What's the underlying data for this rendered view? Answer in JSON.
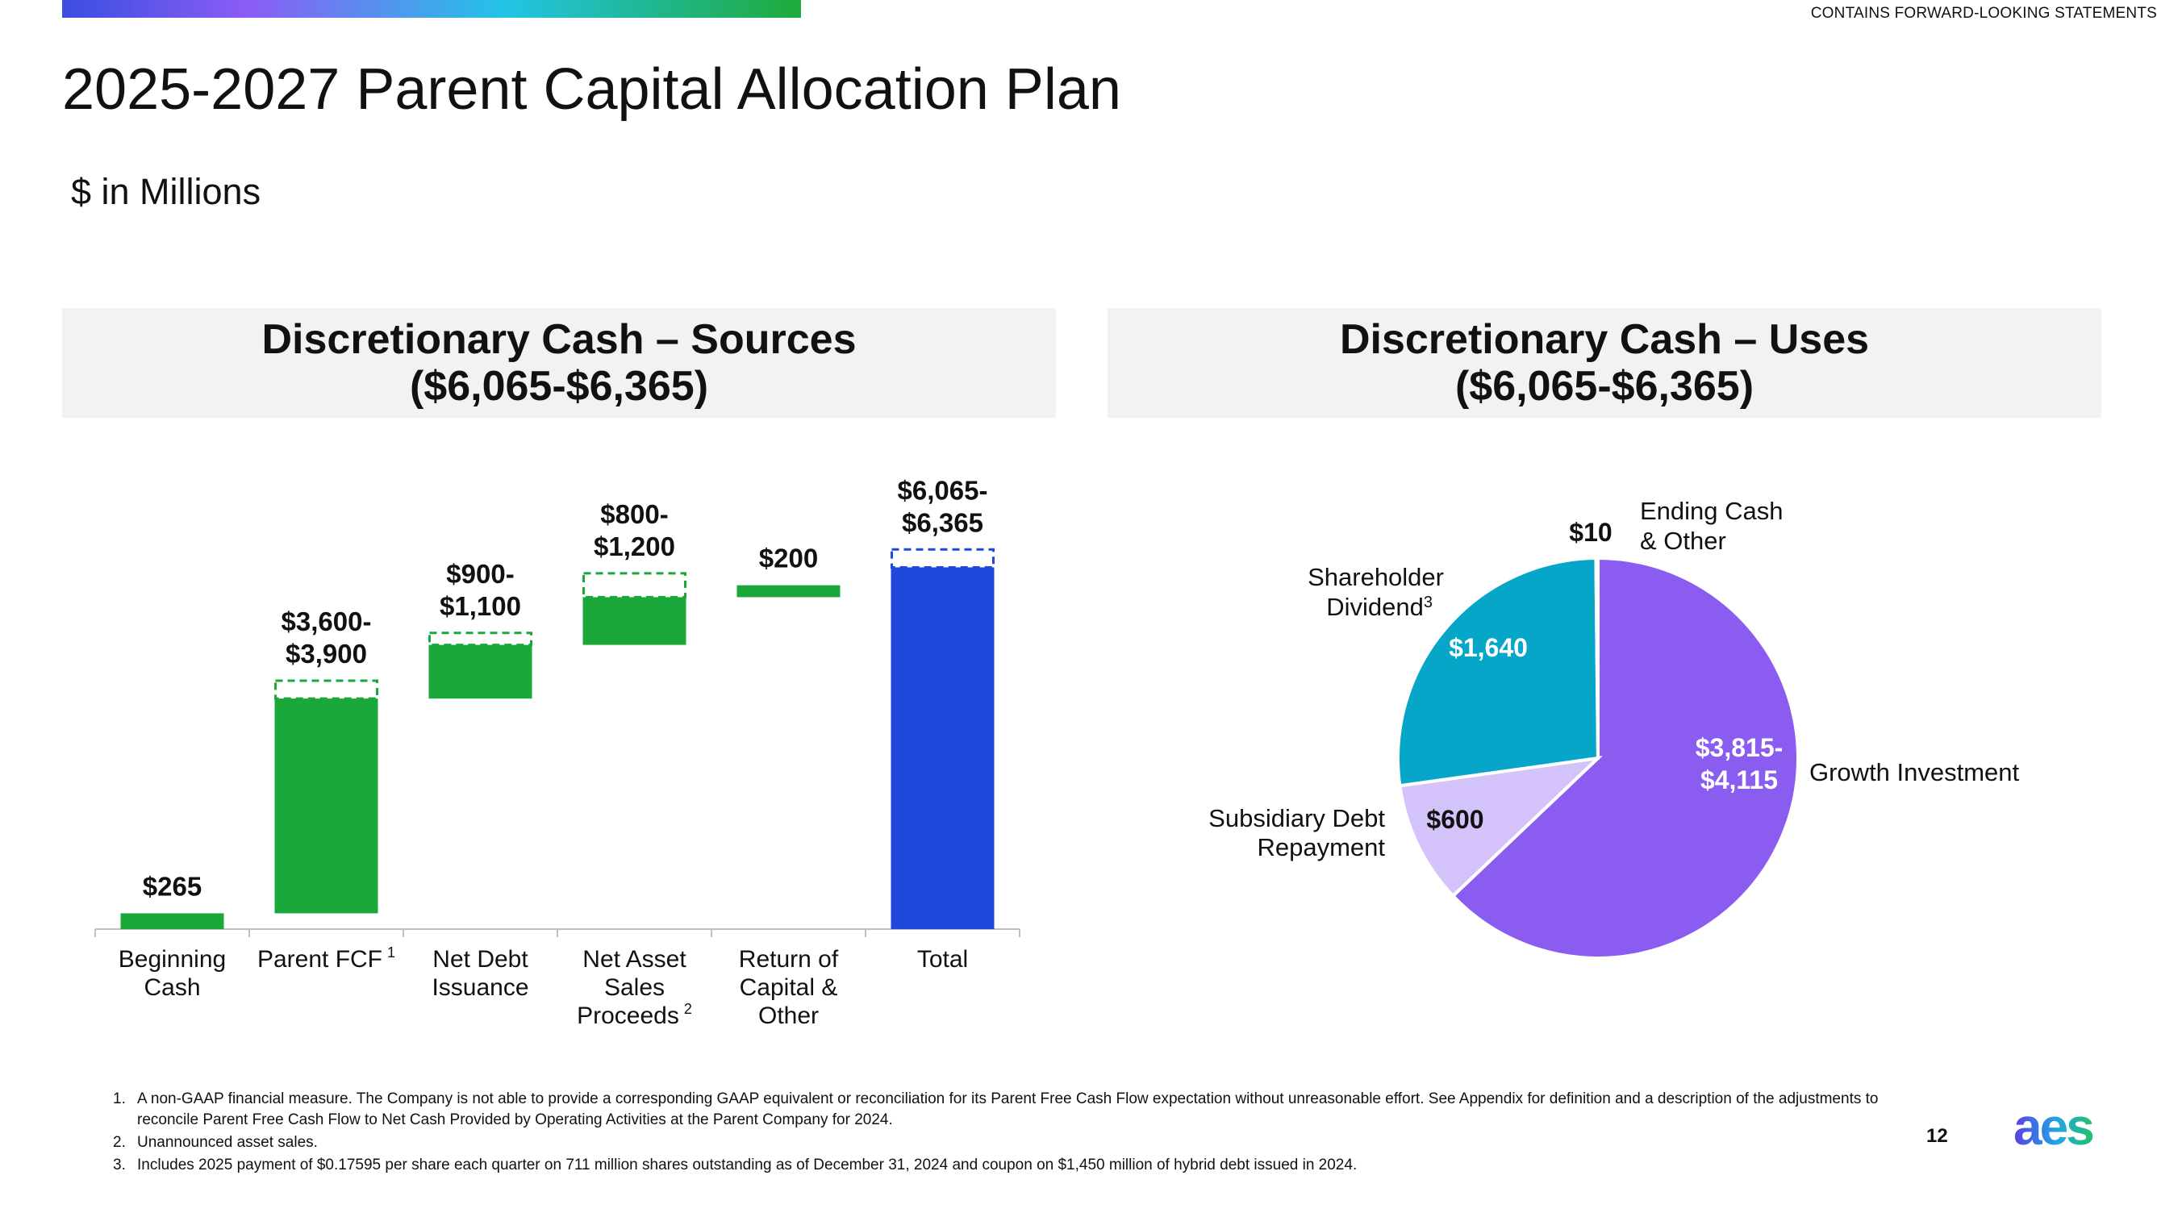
{
  "header": {
    "notice": "CONTAINS FORWARD-LOOKING STATEMENTS",
    "title": "2025-2027 Parent Capital Allocation Plan",
    "units": "$ in Millions"
  },
  "colors": {
    "green": "#1aa83a",
    "blue": "#2049dc",
    "purple": "#8b5cf0",
    "teal": "#06a6c9",
    "lavender": "#d4c3fb",
    "bar_gradient": [
      "#3a4ee0",
      "#8b5cf6",
      "#22c4e6",
      "#1faa3a"
    ]
  },
  "panels": {
    "sources": {
      "title_line1": "Discretionary Cash – Sources",
      "title_line2": "($6,065-$6,365)"
    },
    "uses": {
      "title_line1": "Discretionary Cash – Uses",
      "title_line2": "($6,065-$6,365)"
    }
  },
  "chart_data": [
    {
      "type": "bar",
      "subtype": "waterfall",
      "title": "Discretionary Cash – Sources ($6,065-$6,365)",
      "units": "$ in Millions",
      "categories": [
        {
          "label_lines": [
            "Beginning",
            "Cash"
          ],
          "footnote": ""
        },
        {
          "label_lines": [
            "Parent FCF"
          ],
          "footnote": "1"
        },
        {
          "label_lines": [
            "Net Debt",
            "Issuance"
          ],
          "footnote": ""
        },
        {
          "label_lines": [
            "Net Asset",
            "Sales",
            "Proceeds"
          ],
          "footnote": "2"
        },
        {
          "label_lines": [
            "Return of",
            "Capital &",
            "Other"
          ],
          "footnote": ""
        },
        {
          "label_lines": [
            "Total"
          ],
          "footnote": ""
        }
      ],
      "bars": [
        {
          "low": 265,
          "high": 265,
          "kind": "increase",
          "label_lines": [
            "$265"
          ]
        },
        {
          "low": 3600,
          "high": 3900,
          "kind": "increase",
          "label_lines": [
            "$3,600-",
            "$3,900"
          ]
        },
        {
          "low": 900,
          "high": 1100,
          "kind": "increase",
          "label_lines": [
            "$900-",
            "$1,100"
          ]
        },
        {
          "low": 800,
          "high": 1200,
          "kind": "increase",
          "label_lines": [
            "$800-",
            "$1,200"
          ]
        },
        {
          "low": 200,
          "high": 200,
          "kind": "increase",
          "label_lines": [
            "$200"
          ]
        },
        {
          "low": 6065,
          "high": 6365,
          "kind": "total",
          "label_lines": [
            "$6,065-",
            "$6,365"
          ]
        }
      ],
      "ylim": [
        0,
        7200
      ]
    },
    {
      "type": "pie",
      "title": "Discretionary Cash – Uses ($6,065-$6,365)",
      "slices": [
        {
          "name": "Growth Investment",
          "name_lines": [
            "Growth Investment"
          ],
          "value": 3815,
          "value_lines": [
            "$3,815-",
            "$4,115"
          ],
          "color": "#8b5cf0"
        },
        {
          "name": "Subsidiary Debt Repayment",
          "name_lines": [
            "Subsidiary Debt",
            "Repayment"
          ],
          "value": 600,
          "value_lines": [
            "$600"
          ],
          "color": "#d4c3fb"
        },
        {
          "name": "Shareholder Dividend",
          "name_lines": [
            "Shareholder",
            "Dividend"
          ],
          "footnote": "3",
          "value": 1640,
          "value_lines": [
            "$1,640"
          ],
          "color": "#06a6c9"
        },
        {
          "name": "Ending Cash & Other",
          "name_lines": [
            "Ending Cash",
            "& Other"
          ],
          "value": 10,
          "value_lines": [
            "$10"
          ],
          "color": "#06a6c9"
        }
      ]
    }
  ],
  "footnotes": [
    {
      "num": "1.",
      "text": "A non-GAAP financial measure.  The Company is not able to provide a corresponding GAAP equivalent or reconciliation for its Parent Free Cash Flow expectation without unreasonable effort. See Appendix for definition and a description of the adjustments to reconcile Parent Free Cash Flow to Net Cash Provided by Operating Activities at the Parent Company for 2024."
    },
    {
      "num": "2.",
      "text": "Unannounced asset sales."
    },
    {
      "num": "3.",
      "text": "Includes 2025 payment of $0.17595 per share each quarter on 711 million shares outstanding as of December 31, 2024 and coupon on $1,450 million of hybrid debt issued in 2024."
    }
  ],
  "page_number": "12",
  "logo_text": "aes"
}
